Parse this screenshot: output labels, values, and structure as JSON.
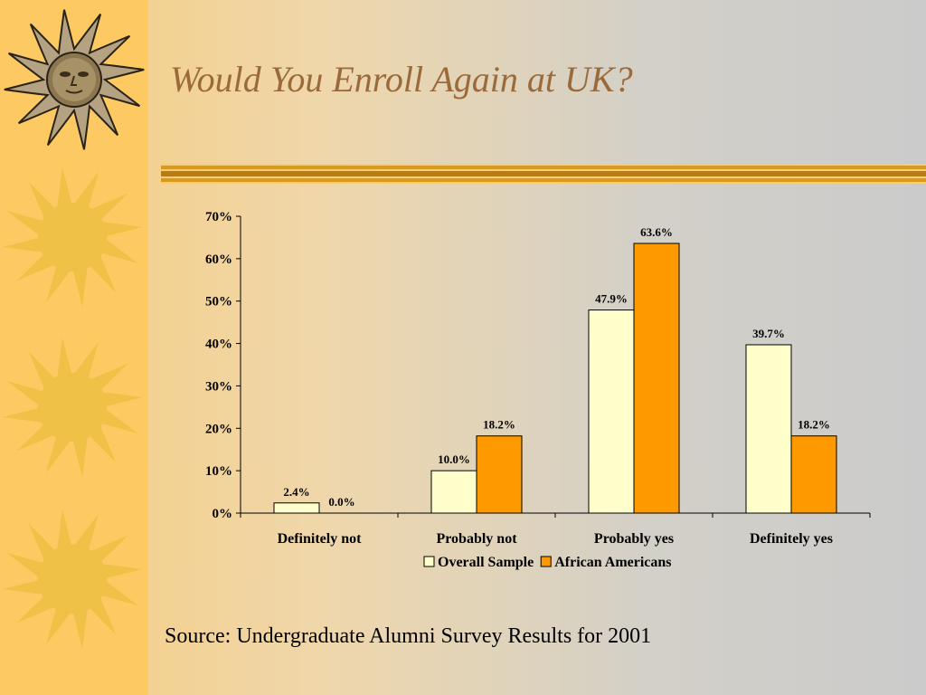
{
  "slide": {
    "title": "Would You Enroll Again at UK?",
    "source": "Source: Undergraduate Alumni Survey Results for 2001"
  },
  "colors": {
    "sidebar": "#fdc963",
    "sun": "#f0c147",
    "title": "#9b6a3a",
    "rule": "#d9981e",
    "overall": "#ffffcc",
    "african": "#ff9900"
  },
  "icons": [
    "sun-face-icon",
    "sun-icon",
    "sun-icon",
    "sun-icon"
  ],
  "chart_data": {
    "type": "bar",
    "title": "",
    "xlabel": "",
    "ylabel": "",
    "categories": [
      "Definitely not",
      "Probably not",
      "Probably yes",
      "Definitely yes"
    ],
    "series": [
      {
        "name": "Overall Sample",
        "values": [
          2.4,
          10.0,
          47.9,
          39.7
        ],
        "labels": [
          "2.4%",
          "10.0%",
          "47.9%",
          "39.7%"
        ]
      },
      {
        "name": "African Americans",
        "values": [
          0.0,
          18.2,
          63.6,
          18.2
        ],
        "labels": [
          "0.0%",
          "18.2%",
          "63.6%",
          "18.2%"
        ]
      }
    ],
    "yticks": [
      0,
      10,
      20,
      30,
      40,
      50,
      60,
      70
    ],
    "ytick_labels": [
      "0%",
      "10%",
      "20%",
      "30%",
      "40%",
      "50%",
      "60%",
      "70%"
    ],
    "ylim": [
      0,
      70
    ],
    "grid": false,
    "legend": "bottom"
  }
}
